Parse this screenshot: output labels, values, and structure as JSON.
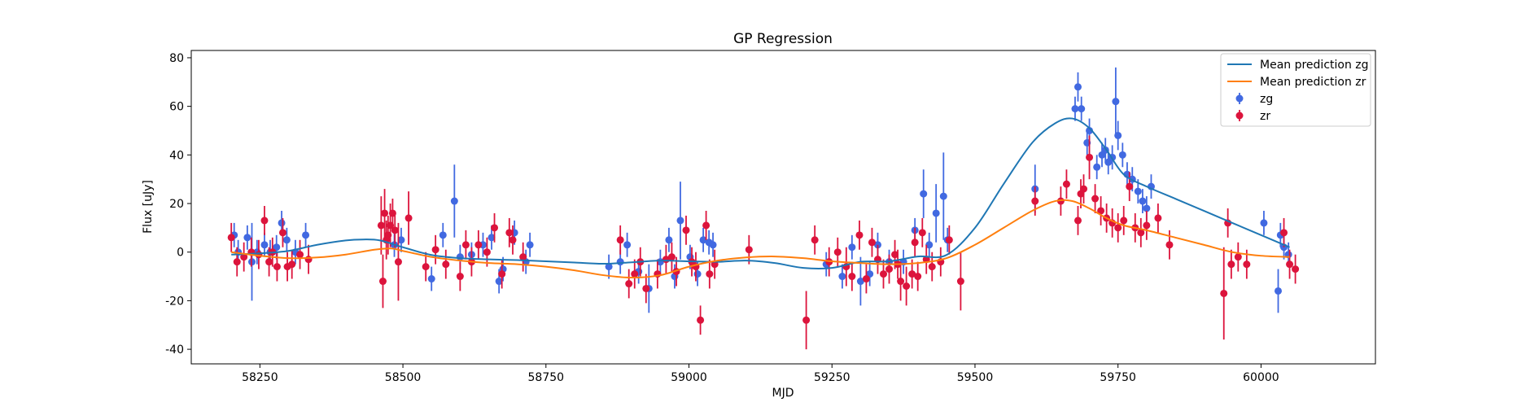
{
  "chart_data": {
    "type": "scatter",
    "title": "GP Regression",
    "xlabel": "MJD",
    "ylabel": "Flux [uJy]",
    "xlim": [
      58130,
      60200
    ],
    "ylim": [
      -46,
      83
    ],
    "xticks": [
      58250,
      58500,
      58750,
      59000,
      59250,
      59500,
      59750,
      60000
    ],
    "yticks": [
      -40,
      -20,
      0,
      20,
      40,
      60,
      80
    ],
    "grid": false,
    "legend_position": "top-right",
    "series": [
      {
        "name": "Mean prediction zg",
        "kind": "line",
        "color": "#1f77b4",
        "x": [
          58200,
          58250,
          58300,
          58350,
          58400,
          58430,
          58460,
          58500,
          58550,
          58600,
          58650,
          58700,
          58750,
          58800,
          58850,
          58900,
          58950,
          59000,
          59050,
          59100,
          59150,
          59200,
          59250,
          59300,
          59350,
          59400,
          59450,
          59500,
          59550,
          59600,
          59640,
          59670,
          59700,
          59730,
          59760,
          59800,
          59850,
          59900,
          59950,
          60000,
          60050
        ],
        "values": [
          -1,
          -0.5,
          0.5,
          3,
          4.8,
          5.2,
          4.8,
          2,
          -1.2,
          -2.5,
          -3,
          -3.3,
          -3.8,
          -4.3,
          -4.8,
          -4.2,
          -3.5,
          -3.8,
          -4,
          -3.5,
          -4.5,
          -6.5,
          -6.5,
          -4,
          -3.8,
          -1.8,
          -1.2,
          10,
          28,
          45,
          53,
          55,
          51,
          42,
          32,
          27,
          22,
          17,
          12,
          7,
          2
        ]
      },
      {
        "name": "Mean prediction zr",
        "kind": "line",
        "color": "#ff7f0e",
        "x": [
          58200,
          58250,
          58300,
          58350,
          58400,
          58450,
          58480,
          58500,
          58550,
          58600,
          58650,
          58700,
          58750,
          58800,
          58850,
          58900,
          58950,
          59000,
          59050,
          59100,
          59150,
          59200,
          59250,
          59300,
          59350,
          59400,
          59450,
          59500,
          59550,
          59600,
          59640,
          59670,
          59700,
          59730,
          59760,
          59800,
          59850,
          59900,
          59950,
          60000,
          60050
        ],
        "values": [
          0,
          -1.5,
          -2.5,
          -2.2,
          -1,
          1,
          1.5,
          0.5,
          -2,
          -3.5,
          -4.5,
          -5,
          -6,
          -7.5,
          -9.5,
          -10.5,
          -9.5,
          -6,
          -3.5,
          -2.2,
          -1.8,
          -2.5,
          -3.8,
          -4.5,
          -5,
          -4.5,
          -2.5,
          3,
          10,
          17,
          21,
          21,
          18,
          14,
          11,
          9,
          6,
          3,
          0,
          -1.5,
          -2
        ]
      },
      {
        "name": "zg",
        "kind": "errorbar",
        "color": "#4169e1",
        "x": [
          58205,
          58212,
          58228,
          58236,
          58245,
          58258,
          58268,
          58279,
          58288,
          58297,
          58312,
          58330,
          58485,
          58497,
          58550,
          58570,
          58590,
          58600,
          58620,
          58640,
          58655,
          58668,
          58675,
          58695,
          58715,
          58722,
          58860,
          58880,
          58892,
          58912,
          58930,
          58950,
          58965,
          58975,
          58985,
          59002,
          59015,
          59025,
          59035,
          59042,
          59240,
          59268,
          59285,
          59300,
          59316,
          59330,
          59350,
          59375,
          59395,
          59410,
          59420,
          59432,
          59445,
          59452,
          59605,
          59675,
          59680,
          59686,
          59696,
          59700,
          59713,
          59722,
          59728,
          59733,
          59740,
          59746,
          59750,
          59758,
          59766,
          59775,
          59785,
          59793,
          59800,
          59808,
          60005,
          60030,
          60034,
          60040,
          60048
        ],
        "values": [
          7,
          0,
          6,
          -4,
          0,
          3,
          0,
          2,
          12,
          5,
          0,
          7,
          3,
          5,
          -11,
          7,
          21,
          -2,
          -1,
          3,
          6,
          -12,
          -7,
          8,
          -4,
          3,
          -6,
          -4,
          3,
          -8,
          -15,
          -4,
          5,
          -10,
          13,
          -2,
          -9,
          5,
          4,
          3,
          -5,
          -10,
          2,
          -12,
          -9,
          3,
          -4,
          -4,
          9,
          24,
          3,
          16,
          23,
          5,
          26,
          59,
          68,
          59,
          45,
          50,
          35,
          40,
          42,
          37,
          39,
          62,
          48,
          40,
          32,
          30,
          25,
          21,
          18,
          27,
          12,
          -16,
          7,
          2,
          -1
        ],
        "err": [
          5,
          5,
          5,
          16,
          5,
          5,
          5,
          5,
          5,
          5,
          5,
          5,
          5,
          5,
          5,
          5,
          15,
          5,
          5,
          5,
          5,
          5,
          5,
          5,
          5,
          5,
          5,
          5,
          5,
          5,
          10,
          5,
          5,
          5,
          16,
          5,
          5,
          5,
          5,
          5,
          5,
          5,
          5,
          10,
          5,
          5,
          5,
          5,
          5,
          10,
          5,
          12,
          18,
          5,
          10,
          5,
          6,
          5,
          5,
          5,
          5,
          5,
          5,
          5,
          5,
          14,
          6,
          5,
          5,
          5,
          5,
          5,
          5,
          5,
          5,
          9,
          5,
          5,
          5
        ]
      },
      {
        "name": "zr",
        "kind": "errorbar",
        "color": "#dc143c",
        "x": [
          58200,
          58210,
          58222,
          58235,
          58248,
          58258,
          58266,
          58272,
          58280,
          58290,
          58298,
          58306,
          58320,
          58335,
          58462,
          58465,
          58468,
          58471,
          58474,
          58478,
          58482,
          58486,
          58492,
          58510,
          58540,
          58557,
          58575,
          58600,
          58610,
          58620,
          58632,
          58647,
          58660,
          58673,
          58686,
          58692,
          58710,
          58880,
          58895,
          58905,
          58915,
          58925,
          58945,
          58960,
          58970,
          58978,
          58995,
          59005,
          59012,
          59020,
          59030,
          59036,
          59045,
          59105,
          59205,
          59220,
          59245,
          59260,
          59275,
          59285,
          59298,
          59310,
          59320,
          59330,
          59340,
          59350,
          59360,
          59365,
          59370,
          59380,
          59390,
          59395,
          59400,
          59408,
          59415,
          59425,
          59440,
          59455,
          59475,
          59605,
          59650,
          59660,
          59680,
          59685,
          59690,
          59700,
          59710,
          59720,
          59730,
          59740,
          59750,
          59760,
          59770,
          59780,
          59790,
          59800,
          59820,
          59840,
          59935,
          59942,
          59948,
          59960,
          59975,
          60040,
          60050,
          60060
        ],
        "values": [
          6,
          -4,
          -2,
          0,
          -1,
          13,
          -4,
          0,
          -6,
          8,
          -6,
          -5,
          -1,
          -3,
          11,
          -12,
          16,
          5,
          7,
          11,
          16,
          9,
          -4,
          14,
          -6,
          1,
          -5,
          -10,
          3,
          -4,
          3,
          0,
          10,
          -9,
          8,
          5,
          -2,
          5,
          -13,
          -9,
          -4,
          -15,
          -9,
          -3,
          -2,
          -8,
          9,
          -4,
          -6,
          -28,
          11,
          -9,
          -5,
          1,
          -28,
          5,
          -4,
          0,
          -6,
          -10,
          7,
          -11,
          4,
          -3,
          -9,
          -7,
          -1,
          -5,
          -12,
          -14,
          -9,
          4,
          -10,
          8,
          -3,
          -6,
          -4,
          5,
          -12,
          21,
          21,
          28,
          13,
          24,
          26,
          39,
          22,
          17,
          14,
          12,
          10,
          13,
          27,
          10,
          8,
          11,
          14,
          3,
          -17,
          12,
          -5,
          -2,
          -5,
          8,
          -5,
          -7
        ],
        "err": [
          6,
          6,
          6,
          6,
          6,
          6,
          6,
          6,
          6,
          6,
          6,
          6,
          6,
          6,
          12,
          11,
          10,
          8,
          8,
          9,
          6,
          7,
          16,
          11,
          6,
          6,
          6,
          6,
          6,
          6,
          6,
          6,
          6,
          6,
          6,
          6,
          6,
          6,
          6,
          6,
          6,
          6,
          6,
          6,
          6,
          6,
          6,
          6,
          6,
          6,
          6,
          6,
          6,
          6,
          12,
          6,
          6,
          6,
          8,
          6,
          6,
          6,
          6,
          6,
          6,
          6,
          6,
          6,
          8,
          8,
          6,
          6,
          6,
          6,
          6,
          6,
          6,
          6,
          12,
          6,
          6,
          6,
          6,
          6,
          6,
          9,
          6,
          6,
          6,
          6,
          6,
          6,
          6,
          6,
          6,
          6,
          6,
          6,
          19,
          6,
          6,
          6,
          6,
          6,
          6,
          6
        ]
      }
    ]
  }
}
